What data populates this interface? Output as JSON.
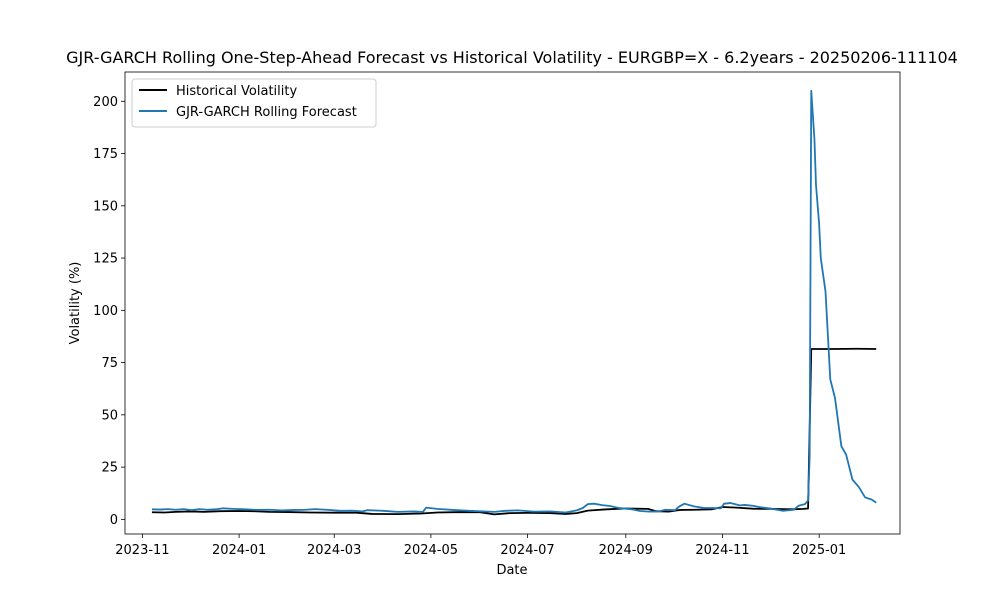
{
  "chart_data": {
    "type": "line",
    "title": "GJR-GARCH Rolling One-Step-Ahead Forecast vs Historical Volatility - EURGBP=X - 6.2years - 20250206-111104",
    "xlabel": "Date",
    "ylabel": "Volatility (%)",
    "xlim": [
      "2023-10-21",
      "2025-02-21"
    ],
    "ylim": [
      -7,
      214
    ],
    "xticks": [
      "2023-11-01",
      "2024-01-01",
      "2024-03-01",
      "2024-05-01",
      "2024-07-01",
      "2024-09-01",
      "2024-11-01",
      "2025-01-01"
    ],
    "xtick_labels": [
      "2023-11",
      "2024-01",
      "2024-03",
      "2024-05",
      "2024-07",
      "2024-09",
      "2024-11",
      "2025-01"
    ],
    "yticks": [
      0,
      25,
      50,
      75,
      100,
      125,
      150,
      175,
      200
    ],
    "ytick_labels": [
      "0",
      "25",
      "50",
      "75",
      "100",
      "125",
      "150",
      "175",
      "200"
    ],
    "grid": false,
    "legend_position": "top-left",
    "series": [
      {
        "name": "Historical Volatility",
        "color": "#000000",
        "points": [
          [
            "2023-11-07",
            3.4
          ],
          [
            "2023-11-15",
            3.3
          ],
          [
            "2023-11-22",
            3.6
          ],
          [
            "2023-12-01",
            3.8
          ],
          [
            "2023-12-10",
            3.6
          ],
          [
            "2023-12-20",
            3.9
          ],
          [
            "2024-01-01",
            4.0
          ],
          [
            "2024-01-10",
            3.9
          ],
          [
            "2024-01-20",
            3.6
          ],
          [
            "2024-02-01",
            3.5
          ],
          [
            "2024-02-15",
            3.3
          ],
          [
            "2024-03-01",
            3.2
          ],
          [
            "2024-03-15",
            3.2
          ],
          [
            "2024-03-25",
            2.6
          ],
          [
            "2024-04-10",
            2.5
          ],
          [
            "2024-04-25",
            2.8
          ],
          [
            "2024-05-05",
            3.3
          ],
          [
            "2024-05-20",
            3.5
          ],
          [
            "2024-06-01",
            3.4
          ],
          [
            "2024-06-10",
            2.4
          ],
          [
            "2024-06-20",
            3.0
          ],
          [
            "2024-07-01",
            3.1
          ],
          [
            "2024-07-15",
            3.0
          ],
          [
            "2024-07-25",
            2.6
          ],
          [
            "2024-08-01",
            3.0
          ],
          [
            "2024-08-08",
            4.2
          ],
          [
            "2024-08-20",
            4.8
          ],
          [
            "2024-09-01",
            5.2
          ],
          [
            "2024-09-15",
            5.0
          ],
          [
            "2024-09-20",
            3.9
          ],
          [
            "2024-09-28",
            3.7
          ],
          [
            "2024-10-05",
            4.5
          ],
          [
            "2024-10-15",
            4.6
          ],
          [
            "2024-10-25",
            4.8
          ],
          [
            "2024-11-01",
            5.9
          ],
          [
            "2024-11-10",
            5.6
          ],
          [
            "2024-11-20",
            5.1
          ],
          [
            "2024-12-01",
            5.0
          ],
          [
            "2024-12-10",
            4.9
          ],
          [
            "2024-12-15",
            4.8
          ],
          [
            "2024-12-22",
            5.0
          ],
          [
            "2024-12-25",
            5.2
          ],
          [
            "2024-12-27",
            81.5
          ],
          [
            "2025-01-10",
            81.5
          ],
          [
            "2025-01-25",
            81.6
          ],
          [
            "2025-02-06",
            81.5
          ]
        ]
      },
      {
        "name": "GJR-GARCH Rolling Forecast",
        "color": "#1f77b4",
        "points": [
          [
            "2023-11-07",
            4.8
          ],
          [
            "2023-11-12",
            4.7
          ],
          [
            "2023-11-17",
            4.9
          ],
          [
            "2023-11-22",
            4.6
          ],
          [
            "2023-11-27",
            4.9
          ],
          [
            "2023-12-02",
            4.4
          ],
          [
            "2023-12-07",
            4.9
          ],
          [
            "2023-12-12",
            4.6
          ],
          [
            "2023-12-17",
            4.8
          ],
          [
            "2023-12-22",
            5.3
          ],
          [
            "2023-12-28",
            5.0
          ],
          [
            "2024-01-05",
            4.8
          ],
          [
            "2024-01-12",
            4.5
          ],
          [
            "2024-01-20",
            4.6
          ],
          [
            "2024-01-28",
            4.3
          ],
          [
            "2024-02-05",
            4.5
          ],
          [
            "2024-02-12",
            4.6
          ],
          [
            "2024-02-18",
            4.9
          ],
          [
            "2024-02-25",
            4.6
          ],
          [
            "2024-03-05",
            4.1
          ],
          [
            "2024-03-12",
            4.2
          ],
          [
            "2024-03-19",
            3.8
          ],
          [
            "2024-03-22",
            4.4
          ],
          [
            "2024-04-01",
            4.1
          ],
          [
            "2024-04-10",
            3.6
          ],
          [
            "2024-04-20",
            3.8
          ],
          [
            "2024-04-26",
            3.6
          ],
          [
            "2024-04-28",
            5.6
          ],
          [
            "2024-05-05",
            5.0
          ],
          [
            "2024-05-15",
            4.5
          ],
          [
            "2024-05-25",
            4.1
          ],
          [
            "2024-06-03",
            3.8
          ],
          [
            "2024-06-10",
            3.6
          ],
          [
            "2024-06-17",
            4.1
          ],
          [
            "2024-06-25",
            4.3
          ],
          [
            "2024-07-05",
            3.7
          ],
          [
            "2024-07-15",
            3.8
          ],
          [
            "2024-07-25",
            3.3
          ],
          [
            "2024-08-01",
            4.3
          ],
          [
            "2024-08-05",
            5.5
          ],
          [
            "2024-08-08",
            7.3
          ],
          [
            "2024-08-12",
            7.5
          ],
          [
            "2024-08-17",
            6.8
          ],
          [
            "2024-08-22",
            6.4
          ],
          [
            "2024-08-28",
            5.4
          ],
          [
            "2024-09-05",
            4.8
          ],
          [
            "2024-09-10",
            4.0
          ],
          [
            "2024-09-16",
            3.7
          ],
          [
            "2024-09-22",
            3.8
          ],
          [
            "2024-09-26",
            4.6
          ],
          [
            "2024-10-02",
            4.4
          ],
          [
            "2024-10-05",
            6.3
          ],
          [
            "2024-10-08",
            7.5
          ],
          [
            "2024-10-14",
            6.2
          ],
          [
            "2024-10-20",
            5.5
          ],
          [
            "2024-10-27",
            5.4
          ],
          [
            "2024-10-31",
            5.3
          ],
          [
            "2024-11-02",
            7.5
          ],
          [
            "2024-11-06",
            7.8
          ],
          [
            "2024-11-12",
            6.7
          ],
          [
            "2024-11-15",
            6.9
          ],
          [
            "2024-11-20",
            6.5
          ],
          [
            "2024-11-25",
            5.8
          ],
          [
            "2024-12-02",
            5.1
          ],
          [
            "2024-12-09",
            4.1
          ],
          [
            "2024-12-16",
            4.6
          ],
          [
            "2024-12-19",
            6.5
          ],
          [
            "2024-12-23",
            7.3
          ],
          [
            "2024-12-25",
            9.0
          ],
          [
            "2024-12-26",
            30.0
          ],
          [
            "2024-12-27",
            205.0
          ],
          [
            "2024-12-29",
            182.0
          ],
          [
            "2024-12-30",
            160.0
          ],
          [
            "2025-01-01",
            141.0
          ],
          [
            "2025-01-02",
            125.0
          ],
          [
            "2025-01-05",
            109.0
          ],
          [
            "2025-01-08",
            67.0
          ],
          [
            "2025-01-11",
            58.0
          ],
          [
            "2025-01-15",
            35.0
          ],
          [
            "2025-01-18",
            31.0
          ],
          [
            "2025-01-22",
            19.0
          ],
          [
            "2025-01-26",
            15.5
          ],
          [
            "2025-01-30",
            10.5
          ],
          [
            "2025-02-03",
            9.5
          ],
          [
            "2025-02-06",
            8.0
          ]
        ]
      }
    ]
  }
}
